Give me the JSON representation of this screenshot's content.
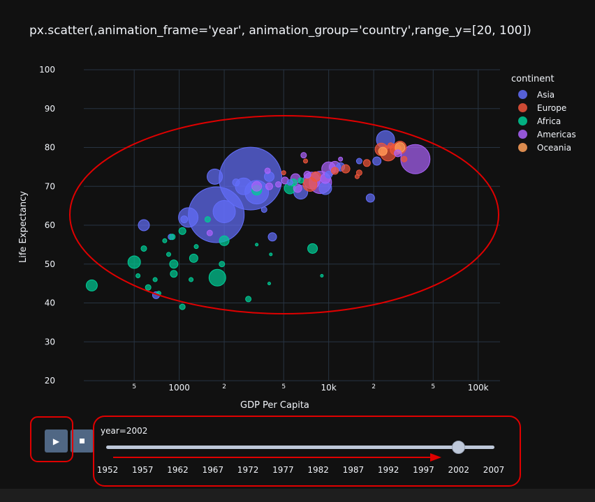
{
  "title": "px.scatter(,animation_frame='year', animation_group='country',range_y=[20, 100])",
  "chart_data": {
    "type": "scatter",
    "x_scale": "log",
    "xlabel": "GDP Per Capita",
    "ylabel": "Life Expectancy",
    "ylim": [
      20,
      100
    ],
    "xlim": [
      230,
      140000
    ],
    "y_ticks": [
      "20",
      "30",
      "40",
      "50",
      "60",
      "70",
      "80",
      "90",
      "100"
    ],
    "x_tick_major": [
      {
        "v": 1000,
        "label": "1000"
      },
      {
        "v": 10000,
        "label": "10k"
      },
      {
        "v": 100000,
        "label": "100k"
      }
    ],
    "x_tick_minor": [
      {
        "v": 500,
        "label": "5"
      },
      {
        "v": 2000,
        "label": "2"
      },
      {
        "v": 5000,
        "label": "5"
      },
      {
        "v": 20000,
        "label": "2"
      },
      {
        "v": 50000,
        "label": "5"
      }
    ],
    "grid": true,
    "legend_title": "continent",
    "legend_position": "right",
    "series": [
      {
        "name": "Asia",
        "color": "#636efa",
        "points": [
          {
            "x": 3000,
            "y": 72,
            "s": 45
          },
          {
            "x": 1770,
            "y": 62.7,
            "s": 40
          },
          {
            "x": 3300,
            "y": 68.5,
            "s": 17
          },
          {
            "x": 2000,
            "y": 63.5,
            "s": 16
          },
          {
            "x": 2700,
            "y": 70,
            "s": 12
          },
          {
            "x": 1150,
            "y": 62,
            "s": 14
          },
          {
            "x": 1730,
            "y": 72.5,
            "s": 11
          },
          {
            "x": 24000,
            "y": 82,
            "s": 13
          },
          {
            "x": 580,
            "y": 60,
            "s": 8
          },
          {
            "x": 19000,
            "y": 67,
            "s": 6
          },
          {
            "x": 4200,
            "y": 57,
            "s": 6
          },
          {
            "x": 6500,
            "y": 68.5,
            "s": 10
          },
          {
            "x": 9500,
            "y": 69.5,
            "s": 9
          },
          {
            "x": 4000,
            "y": 72.5,
            "s": 7
          },
          {
            "x": 1080,
            "y": 61.5,
            "s": 5
          },
          {
            "x": 21000,
            "y": 76.5,
            "s": 6
          },
          {
            "x": 12000,
            "y": 75,
            "s": 6
          },
          {
            "x": 880,
            "y": 57,
            "s": 4
          },
          {
            "x": 3700,
            "y": 64,
            "s": 4
          },
          {
            "x": 700,
            "y": 42,
            "s": 5
          },
          {
            "x": 16000,
            "y": 76.5,
            "s": 4
          },
          {
            "x": 2400,
            "y": 71,
            "s": 5
          },
          {
            "x": 5500,
            "y": 71,
            "s": 4
          },
          {
            "x": 10000,
            "y": 73,
            "s": 5
          }
        ]
      },
      {
        "name": "Europe",
        "color": "#ef553b",
        "points": [
          {
            "x": 25000,
            "y": 78.5,
            "s": 11
          },
          {
            "x": 22500,
            "y": 79.5,
            "s": 9
          },
          {
            "x": 28000,
            "y": 79.5,
            "s": 8
          },
          {
            "x": 30000,
            "y": 80,
            "s": 9
          },
          {
            "x": 7500,
            "y": 70.5,
            "s": 10
          },
          {
            "x": 8200,
            "y": 72.5,
            "s": 7
          },
          {
            "x": 13000,
            "y": 74.5,
            "s": 6
          },
          {
            "x": 18000,
            "y": 76,
            "s": 5
          },
          {
            "x": 16000,
            "y": 73.5,
            "s": 4
          },
          {
            "x": 11000,
            "y": 74,
            "s": 5
          },
          {
            "x": 7000,
            "y": 76.5,
            "s": 3
          },
          {
            "x": 5000,
            "y": 73.5,
            "s": 3
          },
          {
            "x": 32000,
            "y": 77,
            "s": 4
          },
          {
            "x": 15500,
            "y": 72.5,
            "s": 3
          },
          {
            "x": 26000,
            "y": 80.5,
            "s": 4
          }
        ]
      },
      {
        "name": "Africa",
        "color": "#00cc96",
        "points": [
          {
            "x": 1800,
            "y": 46.5,
            "s": 12
          },
          {
            "x": 500,
            "y": 50.5,
            "s": 9
          },
          {
            "x": 260,
            "y": 44.5,
            "s": 8
          },
          {
            "x": 920,
            "y": 50,
            "s": 6
          },
          {
            "x": 1250,
            "y": 51.5,
            "s": 6
          },
          {
            "x": 2000,
            "y": 56,
            "s": 7
          },
          {
            "x": 3300,
            "y": 69,
            "s": 7
          },
          {
            "x": 5500,
            "y": 69.5,
            "s": 8
          },
          {
            "x": 7800,
            "y": 54,
            "s": 7
          },
          {
            "x": 1050,
            "y": 58.5,
            "s": 5
          },
          {
            "x": 920,
            "y": 47.5,
            "s": 5
          },
          {
            "x": 1930,
            "y": 50,
            "s": 4
          },
          {
            "x": 620,
            "y": 44,
            "s": 4
          },
          {
            "x": 580,
            "y": 54,
            "s": 4
          },
          {
            "x": 900,
            "y": 57,
            "s": 4
          },
          {
            "x": 1050,
            "y": 39,
            "s": 4
          },
          {
            "x": 2900,
            "y": 41,
            "s": 4
          },
          {
            "x": 1300,
            "y": 54.5,
            "s": 3
          },
          {
            "x": 850,
            "y": 52.5,
            "s": 3
          },
          {
            "x": 800,
            "y": 56,
            "s": 3
          },
          {
            "x": 1200,
            "y": 46,
            "s": 3
          },
          {
            "x": 530,
            "y": 47,
            "s": 3
          },
          {
            "x": 3300,
            "y": 55,
            "s": 2
          },
          {
            "x": 4100,
            "y": 52.5,
            "s": 2
          },
          {
            "x": 5800,
            "y": 71,
            "s": 5
          },
          {
            "x": 6500,
            "y": 71.5,
            "s": 4
          },
          {
            "x": 4000,
            "y": 45,
            "s": 2
          },
          {
            "x": 9000,
            "y": 47,
            "s": 2
          },
          {
            "x": 690,
            "y": 46,
            "s": 3
          },
          {
            "x": 1550,
            "y": 61.5,
            "s": 4
          },
          {
            "x": 730,
            "y": 42.5,
            "s": 3
          }
        ]
      },
      {
        "name": "Americas",
        "color": "#ab63fa",
        "points": [
          {
            "x": 38000,
            "y": 77,
            "s": 21
          },
          {
            "x": 8800,
            "y": 71,
            "s": 16
          },
          {
            "x": 10000,
            "y": 74.5,
            "s": 10
          },
          {
            "x": 7700,
            "y": 71.5,
            "s": 12
          },
          {
            "x": 3300,
            "y": 70,
            "s": 7
          },
          {
            "x": 6000,
            "y": 72,
            "s": 7
          },
          {
            "x": 9500,
            "y": 72,
            "s": 7
          },
          {
            "x": 11000,
            "y": 75,
            "s": 8
          },
          {
            "x": 6200,
            "y": 69.5,
            "s": 6
          },
          {
            "x": 4000,
            "y": 70,
            "s": 5
          },
          {
            "x": 5100,
            "y": 71.5,
            "s": 5
          },
          {
            "x": 7200,
            "y": 73,
            "s": 5
          },
          {
            "x": 3900,
            "y": 74,
            "s": 4
          },
          {
            "x": 6800,
            "y": 78,
            "s": 4
          },
          {
            "x": 4600,
            "y": 70.5,
            "s": 4
          },
          {
            "x": 1600,
            "y": 58,
            "s": 4
          },
          {
            "x": 12000,
            "y": 77,
            "s": 3
          },
          {
            "x": 29000,
            "y": 78.5,
            "s": 5
          }
        ]
      },
      {
        "name": "Oceania",
        "color": "#ffa15a",
        "points": [
          {
            "x": 30000,
            "y": 80,
            "s": 7
          },
          {
            "x": 23000,
            "y": 79,
            "s": 6
          }
        ]
      }
    ]
  },
  "slider": {
    "current_label": "year=2002",
    "value": 2002,
    "steps": [
      "1952",
      "1957",
      "1962",
      "1967",
      "1972",
      "1977",
      "1982",
      "1987",
      "1992",
      "1997",
      "2002",
      "2007"
    ]
  },
  "buttons": {
    "play_icon": "play-icon",
    "stop_icon": "stop-icon"
  }
}
